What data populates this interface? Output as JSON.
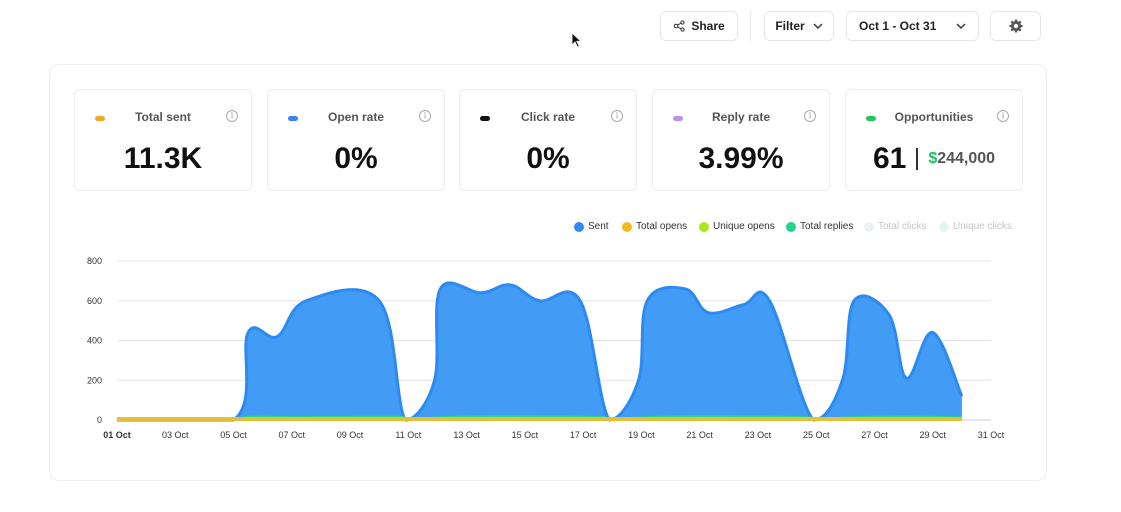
{
  "toolbar": {
    "share_label": "Share",
    "filter_label": "Filter",
    "date_range": "Oct 1 - Oct 31"
  },
  "metrics": [
    {
      "label": "Total sent",
      "value": "11.3K",
      "color": "#f5a623"
    },
    {
      "label": "Open rate",
      "value": "0%",
      "color": "#3b82f6"
    },
    {
      "label": "Click rate",
      "value": "0%",
      "color": "#111111"
    },
    {
      "label": "Reply rate",
      "value": "3.99%",
      "color": "#b98ff0"
    },
    {
      "label": "Opportunities",
      "value": "61",
      "amount_symbol": "$",
      "amount": "244,000",
      "color": "#22c55e"
    }
  ],
  "info_glyph": "i",
  "chart_data": {
    "type": "area",
    "x_labels": [
      "01 Oct",
      "03 Oct",
      "05 Oct",
      "07 Oct",
      "09 Oct",
      "11 Oct",
      "13 Oct",
      "15 Oct",
      "17 Oct",
      "19 Oct",
      "21 Oct",
      "23 Oct",
      "25 Oct",
      "27 Oct",
      "29 Oct",
      "31 Oct"
    ],
    "y_ticks": [
      0,
      200,
      400,
      600,
      800
    ],
    "ylim": [
      0,
      800
    ],
    "grid": true,
    "legend_position": "top-right",
    "legend": [
      {
        "name": "Sent",
        "color": "#2d8af0",
        "active": true
      },
      {
        "name": "Total opens",
        "color": "#f6b91b",
        "active": true
      },
      {
        "name": "Unique opens",
        "color": "#a8e61d",
        "active": true
      },
      {
        "name": "Total replies",
        "color": "#1fd68a",
        "active": true
      },
      {
        "name": "Total clicks",
        "color": "#e8eef2",
        "active": false
      },
      {
        "name": "Unique clicks",
        "color": "#e4f4ee",
        "active": false
      }
    ],
    "series": [
      {
        "name": "Sent",
        "color": "#2d8af0",
        "fill": "#429cf5",
        "values": [
          [
            1,
            0
          ],
          [
            5,
            0
          ],
          [
            5.5,
            440
          ],
          [
            6.5,
            420
          ],
          [
            7.5,
            600
          ],
          [
            10,
            600
          ],
          [
            10.9,
            0
          ],
          [
            11.9,
            200
          ],
          [
            12.1,
            660
          ],
          [
            13.5,
            640
          ],
          [
            14.5,
            680
          ],
          [
            15.5,
            600
          ],
          [
            16.9,
            600
          ],
          [
            17.9,
            0
          ],
          [
            18.9,
            200
          ],
          [
            19.2,
            600
          ],
          [
            20.5,
            660
          ],
          [
            21.3,
            540
          ],
          [
            22.5,
            580
          ],
          [
            23.4,
            600
          ],
          [
            24.9,
            0
          ],
          [
            25.9,
            200
          ],
          [
            26.3,
            600
          ],
          [
            27.5,
            530
          ],
          [
            28.1,
            210
          ],
          [
            29,
            440
          ],
          [
            30,
            120
          ]
        ]
      },
      {
        "name": "Total replies",
        "color": "#1fd68a",
        "values": [
          [
            1,
            0
          ],
          [
            5,
            0
          ],
          [
            5.5,
            18
          ],
          [
            7,
            16
          ],
          [
            10.5,
            18
          ],
          [
            11,
            4
          ],
          [
            12,
            14
          ],
          [
            14,
            22
          ],
          [
            17.5,
            16
          ],
          [
            18,
            4
          ],
          [
            19,
            14
          ],
          [
            21,
            22
          ],
          [
            24.5,
            16
          ],
          [
            25,
            4
          ],
          [
            26,
            14
          ],
          [
            28,
            20
          ],
          [
            30,
            14
          ]
        ]
      },
      {
        "name": "Total opens",
        "color": "#f6b91b",
        "values": [
          [
            1,
            0
          ],
          [
            30,
            0
          ]
        ]
      }
    ]
  }
}
